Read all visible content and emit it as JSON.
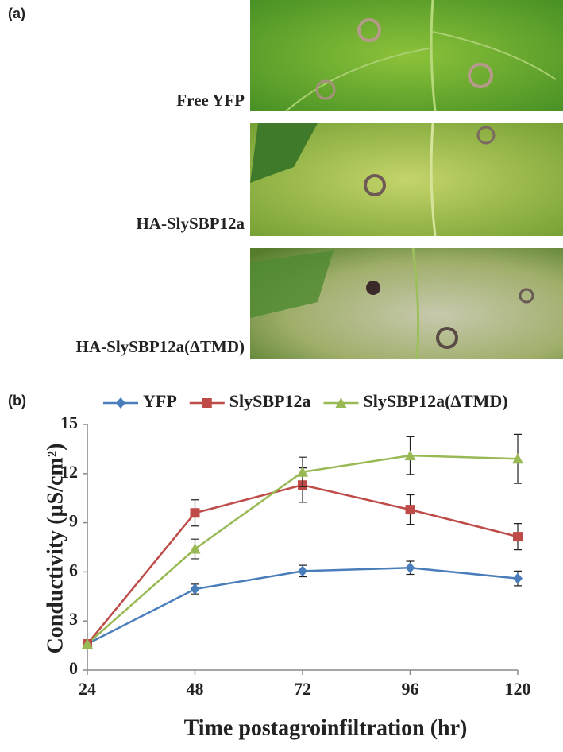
{
  "panel_a": {
    "label": "(a)",
    "image_labels": [
      "Free YFP",
      "HA-SlySBP12a",
      "HA-SlySBP12a(∆TMD)"
    ]
  },
  "chart_data": {
    "type": "line",
    "panel_label": "(b)",
    "x_label": "Time postagroinfiltration (hr)",
    "y_label": "Conductivity (µS/cm²)",
    "x": [
      24,
      48,
      72,
      96,
      120
    ],
    "series": [
      {
        "name": "YFP",
        "color": "#4a7ebb",
        "marker": "diamond",
        "values": [
          1.6,
          4.95,
          6.05,
          6.25,
          5.6
        ],
        "errors": [
          null,
          0.3,
          0.35,
          0.4,
          0.45
        ]
      },
      {
        "name": "SlySBP12a",
        "color": "#be4b48",
        "marker": "square",
        "values": [
          1.6,
          9.6,
          11.3,
          9.8,
          8.15
        ],
        "errors": [
          null,
          0.8,
          1.05,
          0.9,
          0.8
        ]
      },
      {
        "name": "SlySBP12a(∆TMD)",
        "color": "#98b954",
        "marker": "triangle",
        "values": [
          1.6,
          7.4,
          12.1,
          13.1,
          12.9
        ],
        "errors": [
          null,
          0.6,
          0.9,
          1.15,
          1.5
        ]
      }
    ],
    "xlim": [
      24,
      120
    ],
    "xticks": [
      24,
      48,
      72,
      96,
      120
    ],
    "ylim": [
      0,
      15
    ],
    "yticks": [
      0,
      3,
      6,
      9,
      12,
      15
    ],
    "grid": false,
    "legend": "top"
  }
}
